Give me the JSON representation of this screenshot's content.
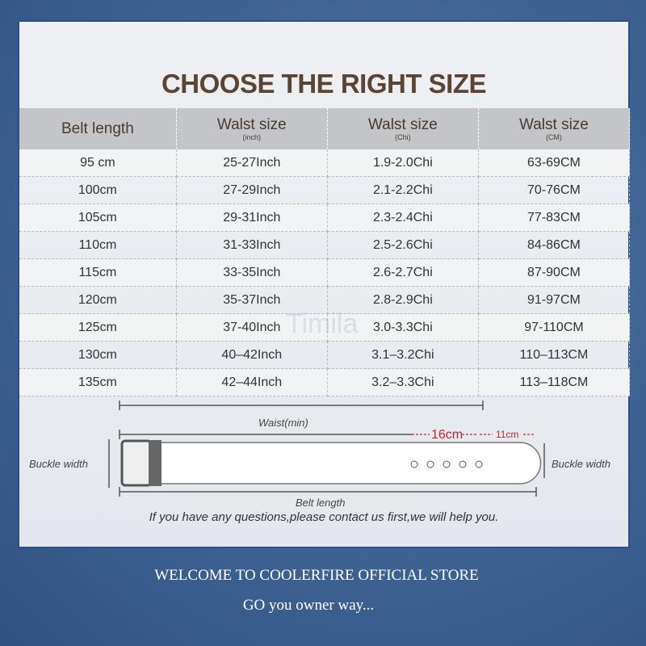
{
  "title": "CHOOSE THE RIGHT SIZE",
  "table": {
    "headers": [
      {
        "label": "Belt length",
        "sub": ""
      },
      {
        "label": "Walst size",
        "sub": "(inch)"
      },
      {
        "label": "Walst size",
        "sub": "(Chi)"
      },
      {
        "label": "Walst size",
        "sub": "(CM)"
      }
    ],
    "rows": [
      [
        "95 cm",
        "25-27Inch",
        "1.9-2.0Chi",
        "63-69CM"
      ],
      [
        "100cm",
        "27-29Inch",
        "2.1-2.2Chi",
        "70-76CM"
      ],
      [
        "105cm",
        "29-31Inch",
        "2.3-2.4Chi",
        "77-83CM"
      ],
      [
        "110cm",
        "31-33Inch",
        "2.5-2.6Chi",
        "84-86CM"
      ],
      [
        "115cm",
        "33-35Inch",
        "2.6-2.7Chi",
        "87-90CM"
      ],
      [
        "120cm",
        "35-37Inch",
        "2.8-2.9Chi",
        "91-97CM"
      ],
      [
        "125cm",
        "37-40Inch",
        "3.0-3.3Chi",
        "97-110CM"
      ],
      [
        "130cm",
        "40–42Inch",
        "3.1–3.2Chi",
        "110–113CM"
      ],
      [
        "135cm",
        "42–44Inch",
        "3.2–3.3Chi",
        "113–118CM"
      ]
    ]
  },
  "watermark": "Timila",
  "diagram": {
    "waist": "Waist(min)",
    "d16": "16cm",
    "d11": "11cm",
    "buckle_left": "Buckle width",
    "buckle_right": "Buckle width",
    "belt_length": "Belt length"
  },
  "note": "If you have any questions,please contact us first,we will help you.",
  "footer": {
    "line1": "WELCOME TO COOLERFIRE OFFICIAL STORE",
    "line2": "GO  you owner way..."
  },
  "colors": {
    "title": "#5a4535",
    "accent_red": "#c0272d",
    "background": "#3f6493"
  }
}
